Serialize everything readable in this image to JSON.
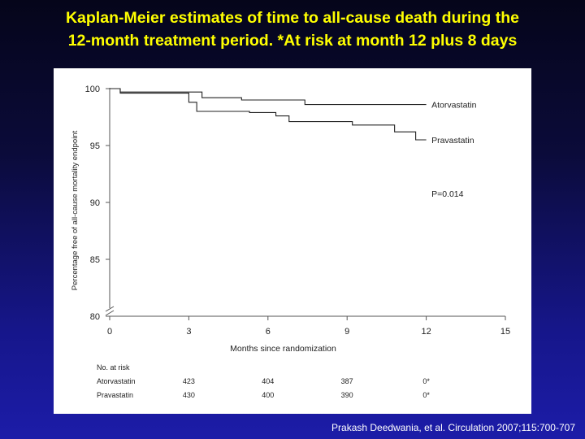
{
  "slide": {
    "title_line1": "Kaplan-Meier estimates of time to all-cause death during the",
    "title_line2": "12-month treatment period. *At risk at month 12 plus 8 days",
    "citation": "Prakash Deedwania, et al. Circulation 2007;115:700-707"
  },
  "chart_data": {
    "type": "line",
    "xlabel": "Months since randomization",
    "ylabel": "Percentage free of all-cause mortality endpoint",
    "xlim": [
      0,
      15
    ],
    "ylim": [
      80,
      100
    ],
    "xticks": [
      0,
      3,
      6,
      9,
      12,
      15
    ],
    "yticks": [
      80,
      85,
      90,
      95,
      100
    ],
    "annotation": "P=0.014",
    "series": [
      {
        "name": "Atorvastatin",
        "color": "#222222",
        "x": [
          0,
          0.4,
          2.6,
          3.5,
          5.0,
          7.4,
          12.0
        ],
        "y": [
          100,
          99.7,
          99.7,
          99.2,
          99.0,
          98.6,
          98.6
        ]
      },
      {
        "name": "Pravastatin",
        "color": "#222222",
        "x": [
          0,
          0.4,
          2.6,
          3.0,
          3.3,
          5.3,
          6.3,
          6.8,
          9.2,
          10.8,
          11.6,
          12.0
        ],
        "y": [
          100,
          99.6,
          99.6,
          98.8,
          98.0,
          97.9,
          97.6,
          97.1,
          96.8,
          96.2,
          95.5,
          95.5
        ]
      }
    ],
    "at_risk": {
      "header": "No. at risk",
      "times": [
        3,
        6,
        9,
        12
      ],
      "rows": [
        {
          "label": "Atorvastatin",
          "values": [
            "423",
            "404",
            "387",
            "0*"
          ]
        },
        {
          "label": "Pravastatin",
          "values": [
            "430",
            "400",
            "390",
            "0*"
          ]
        }
      ]
    }
  }
}
